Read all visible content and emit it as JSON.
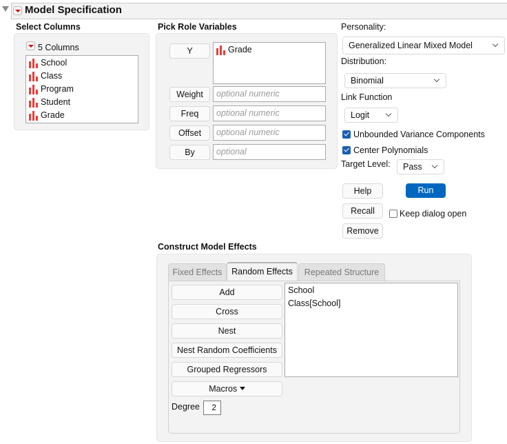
{
  "header": {
    "title": "Model Specification"
  },
  "select_columns": {
    "label": "Select Columns",
    "count_label": "5 Columns",
    "columns": [
      "School",
      "Class",
      "Program",
      "Student",
      "Grade"
    ]
  },
  "roles": {
    "label": "Pick Role Variables",
    "y_label": "Y",
    "y_values": [
      "Grade"
    ],
    "fields": [
      {
        "label": "Weight",
        "placeholder": "optional numeric"
      },
      {
        "label": "Freq",
        "placeholder": "optional numeric"
      },
      {
        "label": "Offset",
        "placeholder": "optional numeric"
      },
      {
        "label": "By",
        "placeholder": "optional"
      }
    ]
  },
  "options": {
    "personality_label": "Personality:",
    "personality": "Generalized Linear Mixed Model",
    "distribution_label": "Distribution:",
    "distribution": "Binomial",
    "link_label": "Link Function",
    "link": "Logit",
    "unbounded_label": "Unbounded Variance Components",
    "unbounded_checked": true,
    "center_label": "Center Polynomials",
    "center_checked": true,
    "target_label": "Target Level:",
    "target": "Pass"
  },
  "actions": {
    "help": "Help",
    "run": "Run",
    "recall": "Recall",
    "remove": "Remove",
    "keep_open": "Keep dialog open",
    "keep_open_checked": false,
    "run_color": "#0067c0"
  },
  "effects": {
    "label": "Construct Model Effects",
    "tabs": [
      "Fixed Effects",
      "Random Effects",
      "Repeated Structure"
    ],
    "active_tab": "Random Effects",
    "buttons": [
      "Add",
      "Cross",
      "Nest",
      "Nest Random Coefficients",
      "Grouped Regressors",
      "Macros"
    ],
    "degree_label": "Degree",
    "degree": "2",
    "terms": [
      "School",
      "Class[School]"
    ]
  }
}
